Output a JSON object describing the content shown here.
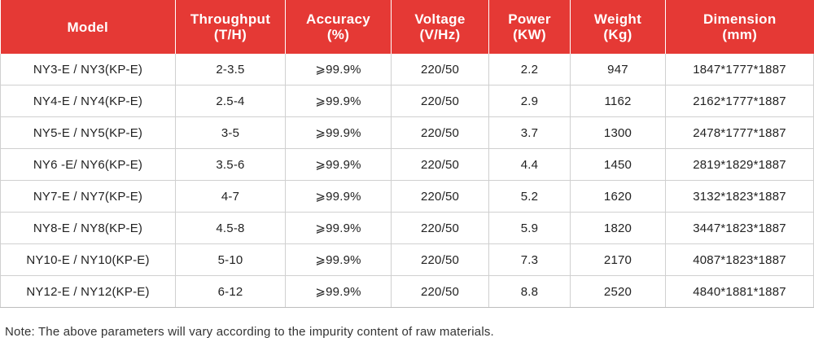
{
  "table": {
    "columns": [
      {
        "line1": "Model",
        "line2": ""
      },
      {
        "line1": "Throughput",
        "line2": "(T/H)"
      },
      {
        "line1": "Accuracy",
        "line2": "(%)"
      },
      {
        "line1": "Voltage",
        "line2": "(V/Hz)"
      },
      {
        "line1": "Power",
        "line2": "(KW)"
      },
      {
        "line1": "Weight",
        "line2": "(Kg)"
      },
      {
        "line1": "Dimension",
        "line2": "(mm)"
      }
    ],
    "rows": [
      [
        "NY3-E / NY3(KP-E)",
        "2-3.5",
        "⩾99.9%",
        "220/50",
        "2.2",
        "947",
        "1847*1777*1887"
      ],
      [
        "NY4-E / NY4(KP-E)",
        "2.5-4",
        "⩾99.9%",
        "220/50",
        "2.9",
        "1162",
        "2162*1777*1887"
      ],
      [
        "NY5-E / NY5(KP-E)",
        "3-5",
        "⩾99.9%",
        "220/50",
        "3.7",
        "1300",
        "2478*1777*1887"
      ],
      [
        "NY6 -E/ NY6(KP-E)",
        "3.5-6",
        "⩾99.9%",
        "220/50",
        "4.4",
        "1450",
        "2819*1829*1887"
      ],
      [
        "NY7-E / NY7(KP-E)",
        "4-7",
        "⩾99.9%",
        "220/50",
        "5.2",
        "1620",
        "3132*1823*1887"
      ],
      [
        "NY8-E / NY8(KP-E)",
        "4.5-8",
        "⩾99.9%",
        "220/50",
        "5.9",
        "1820",
        "3447*1823*1887"
      ],
      [
        "NY10-E / NY10(KP-E)",
        "5-10",
        "⩾99.9%",
        "220/50",
        "7.3",
        "2170",
        "4087*1823*1887"
      ],
      [
        "NY12-E / NY12(KP-E)",
        "6-12",
        "⩾99.9%",
        "220/50",
        "8.8",
        "2520",
        "4840*1881*1887"
      ]
    ]
  },
  "note": "Note: The above parameters will vary according to the impurity content of raw materials.",
  "colors": {
    "header_bg": "#e53935",
    "header_text": "#ffffff",
    "grid_line": "#d0d0d0"
  }
}
